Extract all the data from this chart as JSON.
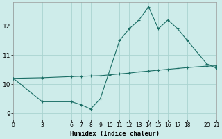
{
  "xlabel": "Humidex (Indice chaleur)",
  "bg_color": "#ceecea",
  "grid_color": "#aad4d0",
  "line_color": "#1a6e65",
  "line1_x": [
    0,
    3,
    6,
    7,
    8,
    9,
    10,
    11,
    12,
    13,
    14,
    15,
    16,
    17,
    18,
    20,
    21
  ],
  "line1_y": [
    10.2,
    9.4,
    9.4,
    9.3,
    9.15,
    9.5,
    10.5,
    11.5,
    11.9,
    12.2,
    12.65,
    11.9,
    12.2,
    11.9,
    11.5,
    10.7,
    10.55
  ],
  "line2_x": [
    0,
    3,
    6,
    7,
    8,
    9,
    10,
    11,
    12,
    13,
    14,
    15,
    16,
    17,
    18,
    20,
    21
  ],
  "line2_y": [
    10.2,
    10.22,
    10.26,
    10.27,
    10.28,
    10.29,
    10.32,
    10.35,
    10.38,
    10.42,
    10.45,
    10.48,
    10.51,
    10.54,
    10.57,
    10.62,
    10.63
  ],
  "xlim": [
    0,
    21
  ],
  "ylim": [
    8.8,
    12.8
  ],
  "xticks": [
    0,
    3,
    6,
    7,
    8,
    9,
    10,
    11,
    12,
    13,
    14,
    15,
    16,
    17,
    18,
    20,
    21
  ],
  "yticks": [
    9,
    10,
    11,
    12
  ],
  "marker": "+",
  "figwidth": 3.2,
  "figheight": 2.0,
  "dpi": 100
}
